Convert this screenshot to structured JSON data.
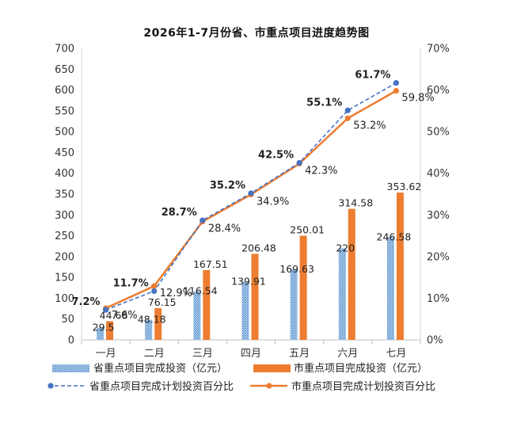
{
  "chart_data": {
    "type": "bar",
    "title": "2026年1-7月份省、市重点项目进度趋势图",
    "categories": [
      "一月",
      "二月",
      "三月",
      "四月",
      "五月",
      "六月",
      "七月"
    ],
    "ylim": [
      0,
      700
    ],
    "y_ticks": [
      "0",
      "50",
      "100",
      "150",
      "200",
      "250",
      "300",
      "350",
      "400",
      "450",
      "500",
      "550",
      "600",
      "650",
      "700"
    ],
    "y2lim": [
      0,
      70
    ],
    "y2_ticks": [
      "0%",
      "10%",
      "20%",
      "30%",
      "40%",
      "50%",
      "60%",
      "70%"
    ],
    "grid": false,
    "legend_position": "bottom",
    "series": [
      {
        "name": "省重点项目完成投资（亿元）",
        "kind": "bar",
        "axis": "left",
        "color": "#5B9BD5",
        "pattern": "dotted",
        "values": [
          29.5,
          48.18,
          116.54,
          139.91,
          169.63,
          220,
          246.58
        ],
        "labels": [
          "29.5",
          "48.18",
          "116.54",
          "139.91",
          "169.63",
          "220",
          "246.58"
        ]
      },
      {
        "name": "市重点项目完成投资（亿元）",
        "kind": "bar",
        "axis": "left",
        "color": "#ED7D31",
        "pattern": "solid",
        "values": [
          44.68,
          76.15,
          167.51,
          206.48,
          250.01,
          314.58,
          353.62
        ],
        "labels": [
          "44.68",
          "76.15",
          "167.51",
          "206.48",
          "250.01",
          "314.58",
          "353.62"
        ]
      },
      {
        "name": "省重点项目完成计划投资百分比",
        "kind": "line",
        "axis": "right",
        "color": "#4472C4",
        "dashed": true,
        "values": [
          7.2,
          11.7,
          28.7,
          35.2,
          42.5,
          55.1,
          61.7
        ],
        "labels": [
          "7.2%",
          "11.7%",
          "28.7%",
          "35.2%",
          "42.5%",
          "55.1%",
          "61.7%"
        ]
      },
      {
        "name": "市重点项目完成计划投资百分比",
        "kind": "line",
        "axis": "right",
        "color": "#ED7D31",
        "dashed": false,
        "values": [
          7.6,
          12.9,
          28.4,
          34.9,
          42.3,
          53.2,
          59.8
        ],
        "labels": [
          "7.6%",
          "12.9%",
          "28.4%",
          "34.9%",
          "42.3%",
          "53.2%",
          "59.8%"
        ]
      }
    ]
  }
}
